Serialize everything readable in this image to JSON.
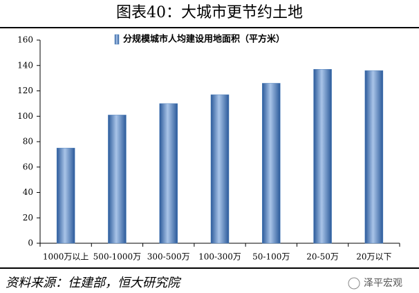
{
  "chart_data": {
    "type": "bar",
    "title": "图表40：大城市更节约土地",
    "categories": [
      "1000万以上",
      "500-1000万",
      "300-500万",
      "100-300万",
      "50-100万",
      "20-50万",
      "20万以下"
    ],
    "series": [
      {
        "name": "分规模城市人均建设用地面积（平方米）",
        "color": "#4f81bd",
        "values": [
          75,
          101,
          110,
          117,
          126,
          137,
          136
        ]
      }
    ],
    "ylim": [
      0,
      160
    ],
    "yticks": [
      0,
      20,
      40,
      60,
      80,
      100,
      120,
      140,
      160
    ],
    "grid": false,
    "legend": "top",
    "source": "资料来源：住建部，恒大研究院",
    "watermark": "泽平宏观"
  }
}
